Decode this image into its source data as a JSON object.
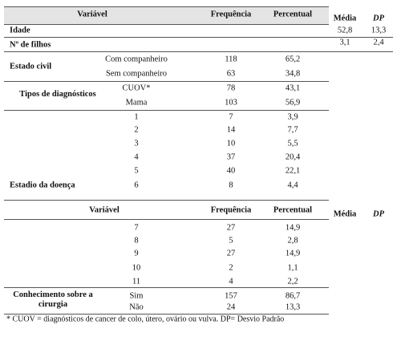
{
  "table": {
    "header": [
      "Variável",
      "Frequência",
      "Percentual",
      "Média",
      "DP"
    ],
    "sections": [
      {
        "label": "Idade",
        "mean": "52,8",
        "sd": "13,3"
      },
      {
        "label": "Nº de filhos",
        "mean": "3,1",
        "sd": "2,4"
      },
      {
        "label": "Estado civil",
        "rows": [
          {
            "category": "Com companheiro",
            "frequency": 118,
            "percent": "65,2"
          },
          {
            "category": "Sem companheiro",
            "frequency": 63,
            "percent": "34,8"
          }
        ]
      },
      {
        "label": "Tipos de diagnósticos",
        "rows": [
          {
            "category": "CUOV*",
            "frequency": 78,
            "percent": "43,1"
          },
          {
            "category": "Mama",
            "frequency": 103,
            "percent": "56,9"
          }
        ]
      },
      {
        "label": "Estadio da doença",
        "rows": [
          {
            "category": "1",
            "frequency": 7,
            "percent": "3,9"
          },
          {
            "category": "2",
            "frequency": 14,
            "percent": "7,7"
          },
          {
            "category": "3",
            "frequency": 10,
            "percent": "5,5"
          },
          {
            "category": "4",
            "frequency": 37,
            "percent": "20,4"
          },
          {
            "category": "5",
            "frequency": 40,
            "percent": "22,1"
          },
          {
            "category": "6",
            "frequency": 8,
            "percent": "4,4"
          }
        ]
      }
    ]
  },
  "continuation": {
    "header": [
      "Variável",
      "Frequência",
      "Percentual",
      "Média",
      "DP"
    ],
    "sections": [
      {
        "rows": [
          {
            "category": "7",
            "frequency": 27,
            "percent": "14,9"
          },
          {
            "category": "8",
            "frequency": 5,
            "percent": "2,8"
          },
          {
            "category": "9",
            "frequency": 27,
            "percent": "14,9"
          },
          {
            "category": "10",
            "frequency": 2,
            "percent": "1,1"
          },
          {
            "category": "11",
            "frequency": 4,
            "percent": "2,2"
          }
        ]
      },
      {
        "label": "Conhecimento sobre a cirurgia",
        "rows": [
          {
            "category": "Sim",
            "frequency": 157,
            "percent": "86,7"
          },
          {
            "category": "Não",
            "frequency": 24,
            "percent": "13,3"
          }
        ]
      }
    ]
  },
  "footnote": "* CUOV = diagnósticos de cancer de colo, útero, ovário ou vulva. DP= Desvio Padrão"
}
